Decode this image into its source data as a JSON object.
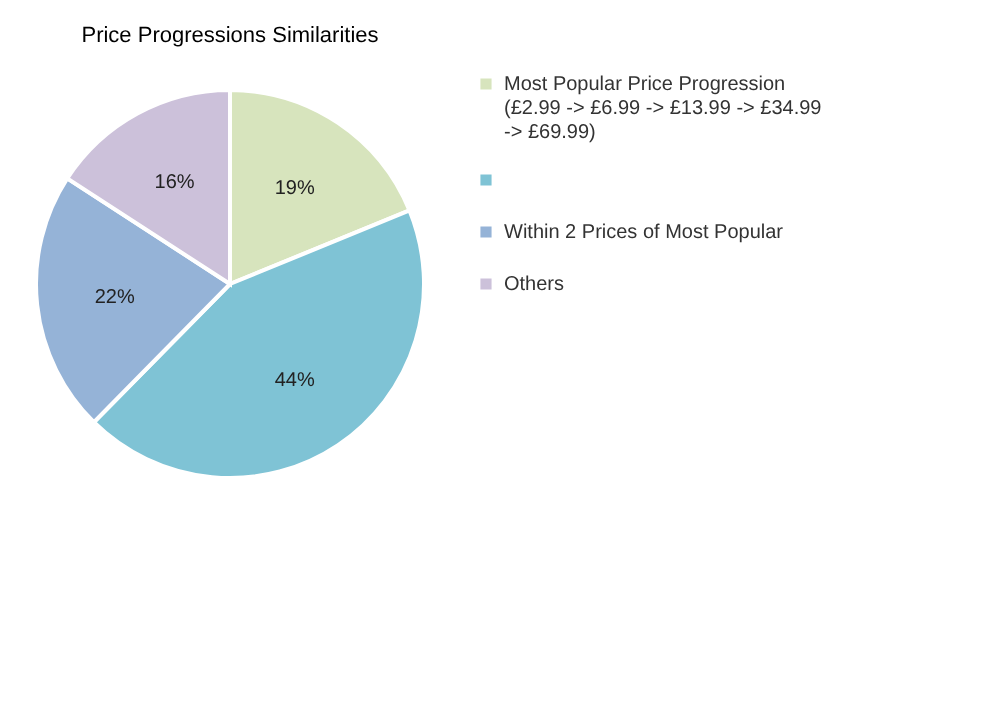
{
  "chart_data": {
    "type": "pie",
    "title": "Price Progressions  Similarities",
    "categories": [
      "Most Popular Price Progression (£2.99 -> £6.99 -> £13.99 -> £34.99 -> £69.99)",
      null,
      "Within 2 Prices of Most Popular",
      "Others"
    ],
    "values": [
      19,
      44,
      22,
      16
    ],
    "colors": [
      "#d7e4bd",
      "#7fc3d5",
      "#95b3d7",
      "#ccc1da"
    ],
    "value_labels": [
      "19%",
      "44%",
      "22%",
      "16%"
    ],
    "legend": "right"
  }
}
